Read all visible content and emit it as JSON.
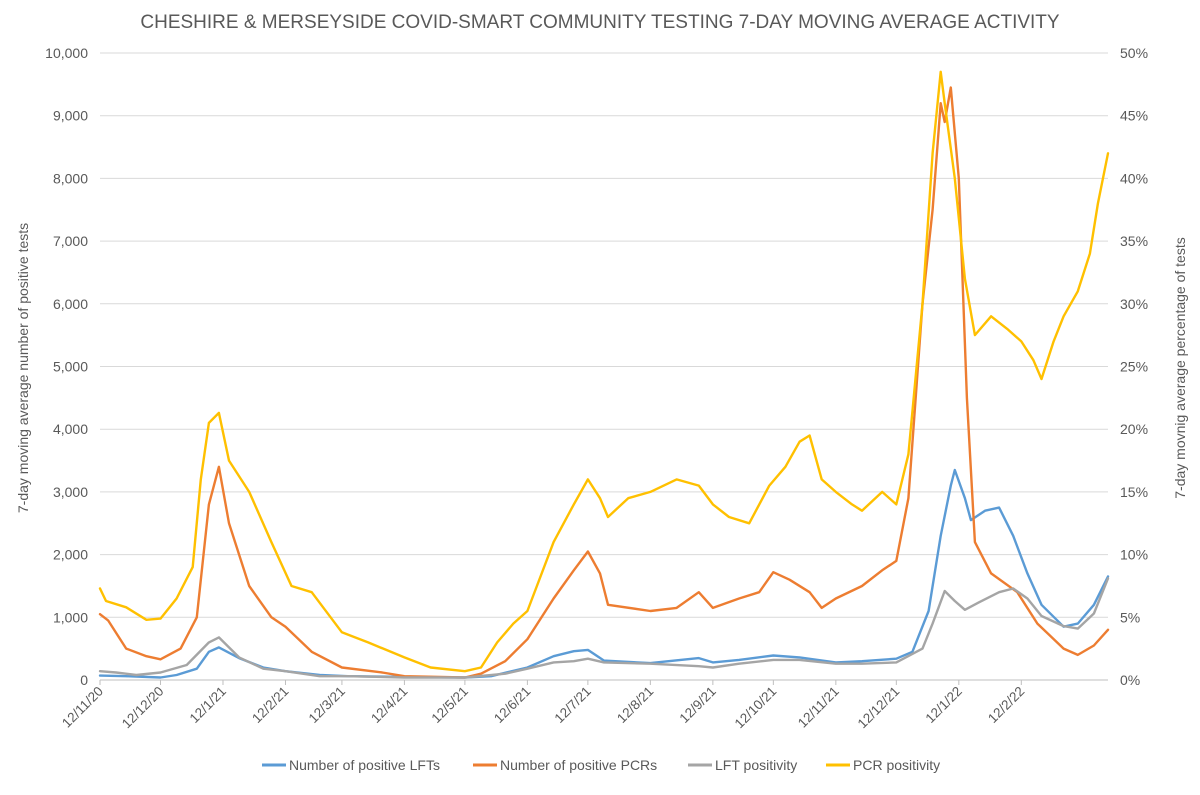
{
  "chart_data": {
    "type": "line",
    "title": "CHESHIRE & MERSEYSIDE COVID-SMART COMMUNITY TESTING 7-DAY MOVING AVERAGE ACTIVITY",
    "ylabel": "7-day moving average number of positive tests",
    "y2label": "7-day movnig average percentage of tests",
    "ylim": [
      0,
      10000
    ],
    "y2lim": [
      0,
      50
    ],
    "yticks": [
      "0",
      "1,000",
      "2,000",
      "3,000",
      "4,000",
      "5,000",
      "6,000",
      "7,000",
      "8,000",
      "9,000",
      "10,000"
    ],
    "y2ticks": [
      "0%",
      "5%",
      "10%",
      "15%",
      "20%",
      "25%",
      "30%",
      "35%",
      "40%",
      "45%",
      "50%"
    ],
    "xticks": [
      "12/11/20",
      "12/12/20",
      "12/1/21",
      "12/2/21",
      "12/3/21",
      "12/4/21",
      "12/5/21",
      "12/6/21",
      "12/7/21",
      "12/8/21",
      "12/9/21",
      "12/10/21",
      "12/11/21",
      "12/12/21",
      "12/1/22",
      "12/2/22"
    ],
    "x_range": [
      "12/11/20",
      "27/3/22"
    ],
    "gridlines": true,
    "legend_position": "bottom",
    "series": [
      {
        "name": "Number of positive LFTs",
        "axis": "left",
        "color": "#5b9bd5",
        "points": [
          [
            "12/11/20",
            70
          ],
          [
            "25/11/20",
            60
          ],
          [
            "12/12/20",
            40
          ],
          [
            "20/12/20",
            80
          ],
          [
            "30/12/20",
            180
          ],
          [
            "5/1/21",
            450
          ],
          [
            "10/1/21",
            520
          ],
          [
            "20/1/21",
            350
          ],
          [
            "1/2/21",
            200
          ],
          [
            "12/2/21",
            140
          ],
          [
            "1/3/21",
            80
          ],
          [
            "15/3/21",
            60
          ],
          [
            "12/4/21",
            50
          ],
          [
            "12/5/21",
            40
          ],
          [
            "25/5/21",
            60
          ],
          [
            "12/6/21",
            200
          ],
          [
            "25/6/21",
            380
          ],
          [
            "5/7/21",
            460
          ],
          [
            "12/7/21",
            480
          ],
          [
            "20/7/21",
            310
          ],
          [
            "12/8/21",
            270
          ],
          [
            "5/9/21",
            350
          ],
          [
            "12/9/21",
            280
          ],
          [
            "25/9/21",
            320
          ],
          [
            "12/10/21",
            390
          ],
          [
            "25/10/21",
            360
          ],
          [
            "12/11/21",
            280
          ],
          [
            "25/11/21",
            300
          ],
          [
            "12/12/21",
            340
          ],
          [
            "20/12/21",
            450
          ],
          [
            "28/12/21",
            1100
          ],
          [
            "3/1/22",
            2300
          ],
          [
            "8/1/22",
            3100
          ],
          [
            "10/1/22",
            3350
          ],
          [
            "15/1/22",
            2900
          ],
          [
            "18/1/22",
            2550
          ],
          [
            "25/1/22",
            2700
          ],
          [
            "1/2/22",
            2750
          ],
          [
            "8/2/22",
            2300
          ],
          [
            "15/2/22",
            1700
          ],
          [
            "22/2/22",
            1200
          ],
          [
            "5/3/22",
            850
          ],
          [
            "12/3/22",
            900
          ],
          [
            "20/3/22",
            1200
          ],
          [
            "27/3/22",
            1650
          ]
        ]
      },
      {
        "name": "Number of positive PCRs",
        "axis": "left",
        "color": "#ed7d31",
        "points": [
          [
            "12/11/20",
            1050
          ],
          [
            "16/11/20",
            950
          ],
          [
            "25/11/20",
            500
          ],
          [
            "5/12/20",
            380
          ],
          [
            "12/12/20",
            330
          ],
          [
            "22/12/20",
            500
          ],
          [
            "30/12/20",
            1000
          ],
          [
            "5/1/21",
            2800
          ],
          [
            "10/1/21",
            3400
          ],
          [
            "15/1/21",
            2500
          ],
          [
            "25/1/21",
            1500
          ],
          [
            "5/2/21",
            1000
          ],
          [
            "12/2/21",
            850
          ],
          [
            "25/2/21",
            450
          ],
          [
            "12/3/21",
            200
          ],
          [
            "1/4/21",
            120
          ],
          [
            "12/4/21",
            60
          ],
          [
            "12/5/21",
            40
          ],
          [
            "20/5/21",
            100
          ],
          [
            "1/6/21",
            300
          ],
          [
            "12/6/21",
            650
          ],
          [
            "25/6/21",
            1300
          ],
          [
            "5/7/21",
            1750
          ],
          [
            "12/7/21",
            2050
          ],
          [
            "18/7/21",
            1700
          ],
          [
            "22/7/21",
            1200
          ],
          [
            "12/8/21",
            1100
          ],
          [
            "25/8/21",
            1150
          ],
          [
            "5/9/21",
            1400
          ],
          [
            "12/9/21",
            1150
          ],
          [
            "25/9/21",
            1300
          ],
          [
            "5/10/21",
            1400
          ],
          [
            "12/10/21",
            1720
          ],
          [
            "20/10/21",
            1600
          ],
          [
            "30/10/21",
            1400
          ],
          [
            "5/11/21",
            1150
          ],
          [
            "12/11/21",
            1300
          ],
          [
            "25/11/21",
            1500
          ],
          [
            "5/12/21",
            1750
          ],
          [
            "12/12/21",
            1900
          ],
          [
            "18/12/21",
            2900
          ],
          [
            "25/12/21",
            6000
          ],
          [
            "30/12/21",
            7500
          ],
          [
            "3/1/22",
            9200
          ],
          [
            "5/1/22",
            8900
          ],
          [
            "8/1/22",
            9450
          ],
          [
            "12/1/22",
            8000
          ],
          [
            "16/1/22",
            4500
          ],
          [
            "20/1/22",
            2200
          ],
          [
            "28/1/22",
            1700
          ],
          [
            "10/2/22",
            1400
          ],
          [
            "20/2/22",
            900
          ],
          [
            "5/3/22",
            500
          ],
          [
            "12/3/22",
            400
          ],
          [
            "20/3/22",
            550
          ],
          [
            "27/3/22",
            800
          ]
        ]
      },
      {
        "name": "LFT positivity",
        "axis": "right",
        "color": "#a5a5a5",
        "points": [
          [
            "12/11/20",
            0.7
          ],
          [
            "20/11/20",
            0.6
          ],
          [
            "30/11/20",
            0.4
          ],
          [
            "12/12/20",
            0.6
          ],
          [
            "25/12/20",
            1.2
          ],
          [
            "5/1/21",
            3.0
          ],
          [
            "10/1/21",
            3.4
          ],
          [
            "20/1/21",
            1.8
          ],
          [
            "1/2/21",
            0.9
          ],
          [
            "12/2/21",
            0.7
          ],
          [
            "1/3/21",
            0.3
          ],
          [
            "15/3/21",
            0.3
          ],
          [
            "12/4/21",
            0.2
          ],
          [
            "12/5/21",
            0.2
          ],
          [
            "1/6/21",
            0.5
          ],
          [
            "12/6/21",
            0.9
          ],
          [
            "25/6/21",
            1.4
          ],
          [
            "5/7/21",
            1.5
          ],
          [
            "12/7/21",
            1.7
          ],
          [
            "20/7/21",
            1.4
          ],
          [
            "12/8/21",
            1.3
          ],
          [
            "5/9/21",
            1.1
          ],
          [
            "12/9/21",
            1.0
          ],
          [
            "25/9/21",
            1.3
          ],
          [
            "12/10/21",
            1.6
          ],
          [
            "25/10/21",
            1.6
          ],
          [
            "12/11/21",
            1.3
          ],
          [
            "25/11/21",
            1.3
          ],
          [
            "12/12/21",
            1.4
          ],
          [
            "25/12/21",
            2.5
          ],
          [
            "30/12/21",
            4.5
          ],
          [
            "5/1/22",
            7.1
          ],
          [
            "10/1/22",
            6.3
          ],
          [
            "15/1/22",
            5.6
          ],
          [
            "22/1/22",
            6.2
          ],
          [
            "1/2/22",
            7.0
          ],
          [
            "8/2/22",
            7.3
          ],
          [
            "15/2/22",
            6.5
          ],
          [
            "22/2/22",
            5.1
          ],
          [
            "5/3/22",
            4.3
          ],
          [
            "12/3/22",
            4.1
          ],
          [
            "20/3/22",
            5.3
          ],
          [
            "27/3/22",
            8.1
          ]
        ]
      },
      {
        "name": "PCR positivity",
        "axis": "right",
        "color": "#ffc000",
        "points": [
          [
            "12/11/20",
            7.3
          ],
          [
            "15/11/20",
            6.3
          ],
          [
            "25/11/20",
            5.8
          ],
          [
            "5/12/20",
            4.8
          ],
          [
            "12/12/20",
            4.9
          ],
          [
            "20/12/20",
            6.5
          ],
          [
            "28/12/20",
            9.0
          ],
          [
            "1/1/21",
            16.0
          ],
          [
            "5/1/21",
            20.5
          ],
          [
            "10/1/21",
            21.3
          ],
          [
            "15/1/21",
            17.5
          ],
          [
            "25/1/21",
            15.0
          ],
          [
            "5/2/21",
            11.0
          ],
          [
            "15/2/21",
            7.5
          ],
          [
            "25/2/21",
            7.0
          ],
          [
            "12/3/21",
            3.8
          ],
          [
            "25/3/21",
            3.0
          ],
          [
            "12/4/21",
            1.8
          ],
          [
            "25/4/21",
            1.0
          ],
          [
            "12/5/21",
            0.7
          ],
          [
            "20/5/21",
            1.0
          ],
          [
            "28/5/21",
            3.0
          ],
          [
            "5/6/21",
            4.5
          ],
          [
            "12/6/21",
            5.5
          ],
          [
            "25/6/21",
            11.0
          ],
          [
            "5/7/21",
            14.0
          ],
          [
            "12/7/21",
            16.0
          ],
          [
            "18/7/21",
            14.5
          ],
          [
            "22/7/21",
            13.0
          ],
          [
            "1/8/21",
            14.5
          ],
          [
            "12/8/21",
            15.0
          ],
          [
            "25/8/21",
            16.0
          ],
          [
            "5/9/21",
            15.5
          ],
          [
            "12/9/21",
            14.0
          ],
          [
            "20/9/21",
            13.0
          ],
          [
            "30/9/21",
            12.5
          ],
          [
            "10/10/21",
            15.5
          ],
          [
            "18/10/21",
            17.0
          ],
          [
            "25/10/21",
            19.0
          ],
          [
            "30/10/21",
            19.5
          ],
          [
            "5/11/21",
            16.0
          ],
          [
            "12/11/21",
            15.0
          ],
          [
            "20/11/21",
            14.0
          ],
          [
            "25/11/21",
            13.5
          ],
          [
            "5/12/21",
            15.0
          ],
          [
            "12/12/21",
            14.0
          ],
          [
            "18/12/21",
            18.0
          ],
          [
            "25/12/21",
            30.0
          ],
          [
            "30/12/21",
            42.0
          ],
          [
            "3/1/22",
            48.5
          ],
          [
            "5/1/22",
            46.0
          ],
          [
            "10/1/22",
            40.0
          ],
          [
            "15/1/22",
            32.0
          ],
          [
            "20/1/22",
            27.5
          ],
          [
            "28/1/22",
            29.0
          ],
          [
            "5/2/22",
            28.0
          ],
          [
            "12/2/22",
            27.0
          ],
          [
            "18/2/22",
            25.5
          ],
          [
            "22/2/22",
            24.0
          ],
          [
            "28/2/22",
            27.0
          ],
          [
            "5/3/22",
            29.0
          ],
          [
            "12/3/22",
            31.0
          ],
          [
            "18/3/22",
            34.0
          ],
          [
            "22/3/22",
            38.0
          ],
          [
            "27/3/22",
            42.0
          ]
        ]
      }
    ]
  }
}
